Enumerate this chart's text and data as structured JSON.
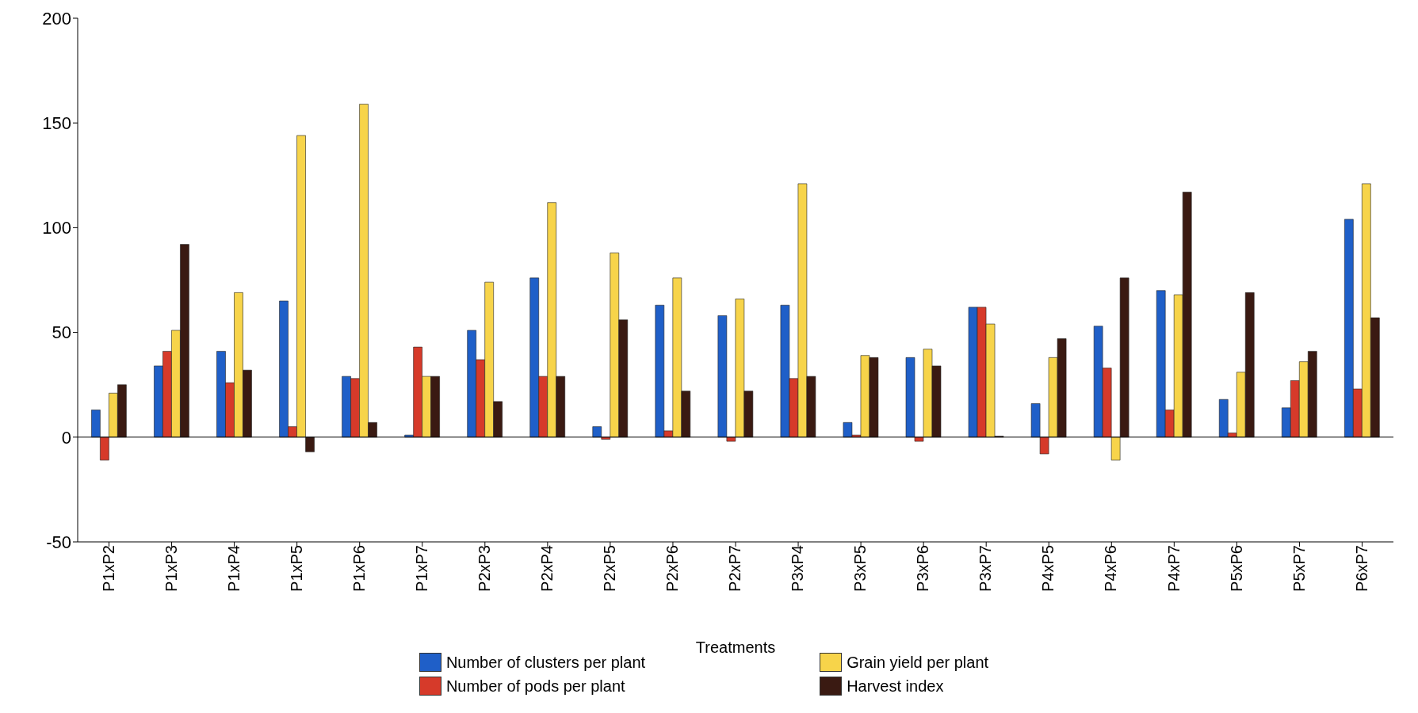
{
  "chart_data": {
    "type": "bar",
    "xlabel": "Treatments",
    "categories": [
      "P1xP2",
      "P1xP3",
      "P1xP4",
      "P1xP5",
      "P1xP6",
      "P1xP7",
      "P2xP3",
      "P2xP4",
      "P2xP5",
      "P2xP6",
      "P2xP7",
      "P3xP4",
      "P3xP5",
      "P3xP6",
      "P3xP7",
      "P4xP5",
      "P4xP6",
      "P4xP7",
      "P5xP6",
      "P5xP7",
      "P6xP7"
    ],
    "series": [
      {
        "name": "Number of clusters per plant",
        "color": "#1f5fc8",
        "values": [
          13,
          34,
          41,
          65,
          29,
          1,
          51,
          76,
          5,
          63,
          58,
          63,
          7,
          38,
          62,
          16,
          53,
          70,
          18,
          14,
          104
        ]
      },
      {
        "name": "Number of pods per plant",
        "color": "#d63a2a",
        "values": [
          -11,
          41,
          26,
          5,
          28,
          43,
          37,
          29,
          -1,
          3,
          -2,
          28,
          1,
          -2,
          62,
          -8,
          33,
          13,
          2,
          27,
          23
        ]
      },
      {
        "name": "Grain yield per plant",
        "color": "#f7d44a",
        "values": [
          21,
          51,
          69,
          144,
          159,
          29,
          74,
          112,
          88,
          76,
          66,
          121,
          39,
          42,
          54,
          38,
          -11,
          68,
          31,
          36,
          121
        ]
      },
      {
        "name": "Harvest index",
        "color": "#3a1a12",
        "values": [
          25,
          92,
          32,
          -7,
          7,
          29,
          17,
          29,
          56,
          22,
          22,
          29,
          38,
          34,
          0.5,
          47,
          76,
          117,
          69,
          41,
          57
        ]
      }
    ],
    "ylim": [
      -50,
      200
    ],
    "yticks": [
      -50,
      0,
      50,
      100,
      150,
      200
    ],
    "ref_lines": [
      {
        "axis": "y",
        "value": 0
      }
    ],
    "grid": false,
    "legend": "bottom"
  }
}
